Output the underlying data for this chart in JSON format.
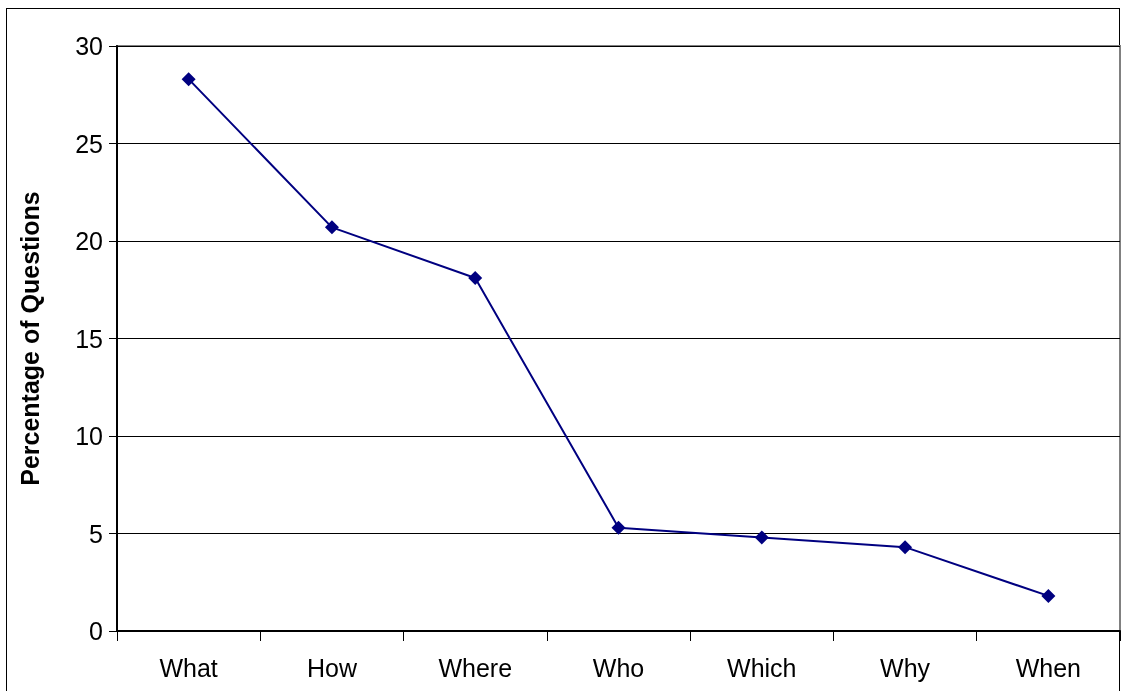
{
  "chart_data": {
    "type": "line",
    "ylabel": "Percentage of Questions",
    "categories": [
      "What",
      "How",
      "Where",
      "Who",
      "Which",
      "Why",
      "When"
    ],
    "series": [
      {
        "color": "#000080",
        "values": [
          28.3,
          20.7,
          18.1,
          5.3,
          4.8,
          4.3,
          1.8
        ]
      }
    ],
    "ylim": [
      0,
      30
    ],
    "yticks": [
      0,
      5,
      10,
      15,
      20,
      25,
      30
    ],
    "grid": "y",
    "marker": "diamond",
    "line_style": "solid"
  }
}
